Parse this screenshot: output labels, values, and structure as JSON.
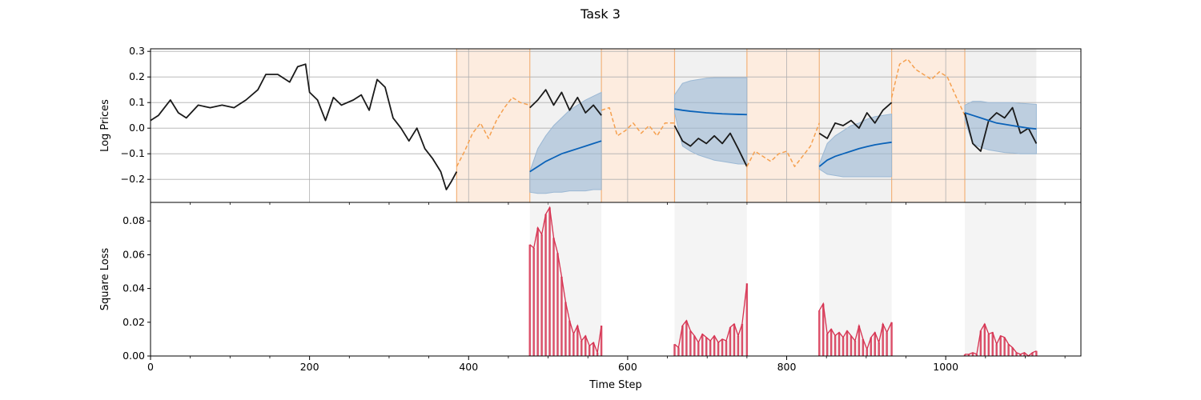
{
  "figure": {
    "title": "Task 3"
  },
  "colors": {
    "actual": "#1a1a1a",
    "context": "#f5a04f",
    "context_fill": "#fde9d9",
    "context_edge": "#f3b27a",
    "forecast": "#0a62b8",
    "interval": "#9bb8d4",
    "forecast_bg": "#e6e6e6",
    "loss": "#d6304f"
  },
  "chart_data": [
    {
      "type": "line",
      "title": "",
      "xlabel": "",
      "ylabel": "Log Prices",
      "xlim": [
        0,
        1170
      ],
      "ylim": [
        -0.29,
        0.31
      ],
      "xticks": [
        0,
        200,
        400,
        600,
        800,
        1000
      ],
      "yticks": [
        -0.2,
        -0.1,
        0.0,
        0.1,
        0.2,
        0.3
      ],
      "ytick_labels": [
        "−0.2",
        "−0.1",
        "0.0",
        "0.1",
        "0.2",
        "0.3"
      ],
      "grid": true,
      "context_windows": [
        [
          385,
          477
        ],
        [
          567,
          659
        ],
        [
          750,
          841
        ],
        [
          932,
          1024
        ]
      ],
      "forecast_windows": [
        [
          477,
          567
        ],
        [
          659,
          750
        ],
        [
          841,
          932
        ],
        [
          1024,
          1114
        ]
      ],
      "series": [
        {
          "style": "actual-solid",
          "x": [
            0,
            10,
            25,
            35,
            45,
            60,
            75,
            90,
            105,
            120,
            135,
            145,
            160,
            175,
            185,
            195,
            200,
            210,
            220,
            230,
            240,
            255,
            265,
            275,
            285,
            295,
            305,
            315,
            325,
            335,
            345,
            355,
            365,
            372,
            378,
            385
          ],
          "y": [
            0.03,
            0.05,
            0.11,
            0.06,
            0.04,
            0.09,
            0.08,
            0.09,
            0.08,
            0.11,
            0.15,
            0.21,
            0.21,
            0.18,
            0.24,
            0.25,
            0.14,
            0.11,
            0.03,
            0.12,
            0.09,
            0.11,
            0.13,
            0.07,
            0.19,
            0.16,
            0.04,
            0.0,
            -0.05,
            0.0,
            -0.08,
            -0.12,
            -0.17,
            -0.24,
            -0.21,
            -0.17
          ]
        },
        {
          "style": "context-dashed",
          "x": [
            385,
            395,
            405,
            415,
            425,
            435,
            445,
            455,
            465,
            477
          ],
          "y": [
            -0.15,
            -0.09,
            -0.02,
            0.02,
            -0.04,
            0.03,
            0.08,
            0.12,
            0.1,
            0.09
          ]
        },
        {
          "style": "actual-solid",
          "x": [
            477,
            487,
            497,
            507,
            517,
            527,
            537,
            547,
            557,
            567
          ],
          "y": [
            0.08,
            0.11,
            0.15,
            0.09,
            0.14,
            0.07,
            0.12,
            0.06,
            0.09,
            0.05
          ]
        },
        {
          "style": "context-dashed",
          "x": [
            567,
            577,
            587,
            597,
            607,
            617,
            627,
            637,
            647,
            659
          ],
          "y": [
            0.07,
            0.08,
            -0.03,
            -0.01,
            0.02,
            -0.02,
            0.01,
            -0.03,
            0.02,
            0.02
          ]
        },
        {
          "style": "actual-solid",
          "x": [
            659,
            669,
            679,
            689,
            699,
            709,
            719,
            729,
            739,
            750
          ],
          "y": [
            0.01,
            -0.05,
            -0.07,
            -0.04,
            -0.06,
            -0.03,
            -0.06,
            -0.02,
            -0.08,
            -0.15
          ]
        },
        {
          "style": "context-dashed",
          "x": [
            750,
            760,
            770,
            780,
            790,
            800,
            810,
            820,
            830,
            841
          ],
          "y": [
            -0.15,
            -0.09,
            -0.11,
            -0.13,
            -0.1,
            -0.09,
            -0.15,
            -0.11,
            -0.07,
            0.02
          ]
        },
        {
          "style": "actual-solid",
          "x": [
            841,
            851,
            861,
            871,
            881,
            891,
            901,
            911,
            921,
            932
          ],
          "y": [
            -0.02,
            -0.04,
            0.02,
            0.01,
            0.03,
            0.0,
            0.06,
            0.02,
            0.07,
            0.1
          ]
        },
        {
          "style": "context-dashed",
          "x": [
            932,
            942,
            952,
            962,
            972,
            982,
            992,
            1002,
            1012,
            1024
          ],
          "y": [
            0.12,
            0.25,
            0.27,
            0.23,
            0.21,
            0.19,
            0.22,
            0.2,
            0.13,
            0.05
          ]
        },
        {
          "style": "actual-solid",
          "x": [
            1024,
            1034,
            1044,
            1054,
            1064,
            1074,
            1084,
            1094,
            1104,
            1114
          ],
          "y": [
            0.06,
            -0.06,
            -0.09,
            0.03,
            0.06,
            0.04,
            0.08,
            -0.02,
            0.0,
            -0.06
          ]
        }
      ],
      "forecasts": [
        {
          "x": [
            477,
            487,
            497,
            507,
            517,
            527,
            537,
            547,
            557,
            567
          ],
          "mean": [
            -0.17,
            -0.15,
            -0.13,
            -0.115,
            -0.1,
            -0.09,
            -0.08,
            -0.07,
            -0.06,
            -0.05
          ],
          "lower": [
            -0.25,
            -0.255,
            -0.255,
            -0.25,
            -0.25,
            -0.245,
            -0.245,
            -0.245,
            -0.24,
            -0.24
          ],
          "upper": [
            -0.17,
            -0.08,
            -0.03,
            0.01,
            0.04,
            0.07,
            0.09,
            0.11,
            0.125,
            0.14
          ]
        },
        {
          "x": [
            659,
            669,
            679,
            689,
            699,
            709,
            719,
            729,
            739,
            750
          ],
          "mean": [
            0.075,
            0.07,
            0.066,
            0.063,
            0.06,
            0.058,
            0.056,
            0.055,
            0.054,
            0.053
          ],
          "lower": [
            0.06,
            -0.07,
            -0.09,
            -0.105,
            -0.115,
            -0.125,
            -0.13,
            -0.135,
            -0.14,
            -0.14
          ],
          "upper": [
            0.13,
            0.175,
            0.185,
            0.19,
            0.195,
            0.197,
            0.197,
            0.197,
            0.197,
            0.197
          ]
        },
        {
          "x": [
            841,
            851,
            861,
            871,
            881,
            891,
            901,
            911,
            921,
            932
          ],
          "mean": [
            -0.15,
            -0.125,
            -0.11,
            -0.1,
            -0.09,
            -0.08,
            -0.072,
            -0.065,
            -0.06,
            -0.055
          ],
          "lower": [
            -0.16,
            -0.18,
            -0.185,
            -0.19,
            -0.19,
            -0.19,
            -0.19,
            -0.19,
            -0.19,
            -0.19
          ],
          "upper": [
            -0.14,
            -0.06,
            -0.03,
            -0.01,
            0.01,
            0.02,
            0.035,
            0.045,
            0.05,
            0.055
          ]
        },
        {
          "x": [
            1024,
            1034,
            1044,
            1054,
            1064,
            1074,
            1084,
            1094,
            1104,
            1114
          ],
          "mean": [
            0.06,
            0.05,
            0.04,
            0.03,
            0.02,
            0.015,
            0.01,
            0.005,
            0.0,
            -0.003
          ],
          "lower": [
            0.03,
            -0.06,
            -0.075,
            -0.085,
            -0.09,
            -0.095,
            -0.097,
            -0.1,
            -0.1,
            -0.1
          ],
          "upper": [
            0.09,
            0.105,
            0.105,
            0.1,
            0.1,
            0.1,
            0.1,
            0.097,
            0.095,
            0.093
          ]
        }
      ]
    },
    {
      "type": "bar",
      "title": "",
      "xlabel": "Time Step",
      "ylabel": "Square Loss",
      "xlim": [
        0,
        1170
      ],
      "ylim": [
        0,
        0.091
      ],
      "xticks": [
        0,
        200,
        400,
        600,
        800,
        1000
      ],
      "yticks": [
        0.0,
        0.02,
        0.04,
        0.06,
        0.08
      ],
      "ytick_labels": [
        "0.00",
        "0.02",
        "0.04",
        "0.06",
        "0.08"
      ],
      "grid": false,
      "forecast_windows": [
        [
          477,
          567
        ],
        [
          659,
          750
        ],
        [
          841,
          932
        ],
        [
          1024,
          1114
        ]
      ],
      "series": [
        {
          "x": [
            477,
            482,
            487,
            492,
            497,
            502,
            507,
            512,
            517,
            522,
            527,
            532,
            537,
            542,
            547,
            552,
            557,
            562,
            567
          ],
          "values": [
            0.066,
            0.064,
            0.076,
            0.072,
            0.084,
            0.088,
            0.07,
            0.061,
            0.047,
            0.032,
            0.021,
            0.013,
            0.018,
            0.009,
            0.012,
            0.006,
            0.008,
            0.002,
            0.018
          ]
        },
        {
          "x": [
            659,
            664,
            669,
            674,
            679,
            684,
            689,
            694,
            699,
            704,
            709,
            714,
            719,
            724,
            729,
            734,
            739,
            744,
            750
          ],
          "values": [
            0.007,
            0.005,
            0.018,
            0.021,
            0.015,
            0.012,
            0.008,
            0.013,
            0.011,
            0.009,
            0.012,
            0.008,
            0.01,
            0.009,
            0.017,
            0.019,
            0.012,
            0.019,
            0.043
          ]
        },
        {
          "x": [
            841,
            846,
            851,
            856,
            861,
            866,
            871,
            876,
            881,
            886,
            891,
            896,
            901,
            906,
            911,
            916,
            921,
            926,
            932
          ],
          "values": [
            0.027,
            0.031,
            0.013,
            0.016,
            0.012,
            0.014,
            0.011,
            0.015,
            0.012,
            0.009,
            0.018,
            0.01,
            0.004,
            0.011,
            0.014,
            0.008,
            0.019,
            0.014,
            0.02
          ]
        },
        {
          "x": [
            1024,
            1029,
            1034,
            1039,
            1044,
            1049,
            1054,
            1059,
            1064,
            1069,
            1074,
            1079,
            1084,
            1089,
            1094,
            1099,
            1104,
            1109,
            1114
          ],
          "values": [
            0.001,
            0.001,
            0.002,
            0.001,
            0.015,
            0.019,
            0.013,
            0.014,
            0.007,
            0.012,
            0.011,
            0.007,
            0.005,
            0.002,
            0.001,
            0.002,
            0.0,
            0.002,
            0.003
          ]
        }
      ]
    }
  ]
}
